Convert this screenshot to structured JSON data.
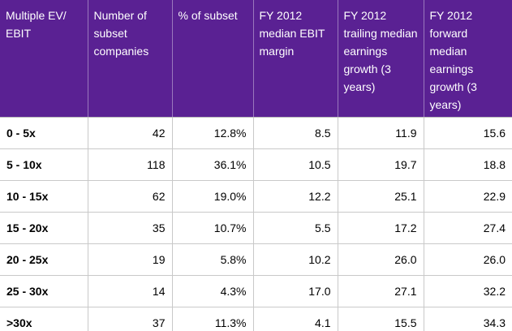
{
  "table": {
    "headers": [
      "Multiple EV/ EBIT",
      "Number of subset companies",
      "% of subset",
      "FY 2012 median EBIT margin",
      "FY 2012 trailing median earnings growth (3 years)",
      "FY 2012 forward median earnings growth (3 years)"
    ],
    "rows": [
      [
        "0 - 5x",
        "42",
        "12.8%",
        "8.5",
        "11.9",
        "15.6"
      ],
      [
        "5 - 10x",
        "118",
        "36.1%",
        "10.5",
        "19.7",
        "18.8"
      ],
      [
        "10 - 15x",
        "62",
        "19.0%",
        "12.2",
        "25.1",
        "22.9"
      ],
      [
        "15 - 20x",
        "35",
        "10.7%",
        "5.5",
        "17.2",
        "27.4"
      ],
      [
        "20 - 25x",
        "19",
        "5.8%",
        "10.2",
        "26.0",
        "26.0"
      ],
      [
        "25 - 30x",
        "14",
        "4.3%",
        "17.0",
        "27.1",
        "32.2"
      ],
      [
        ">30x",
        "37",
        "11.3%",
        "4.1",
        "15.5",
        "34.3"
      ]
    ]
  },
  "colors": {
    "header_background": "#5a2193",
    "header_text": "#ffffff",
    "grid_lines": "#c9c9c9"
  }
}
